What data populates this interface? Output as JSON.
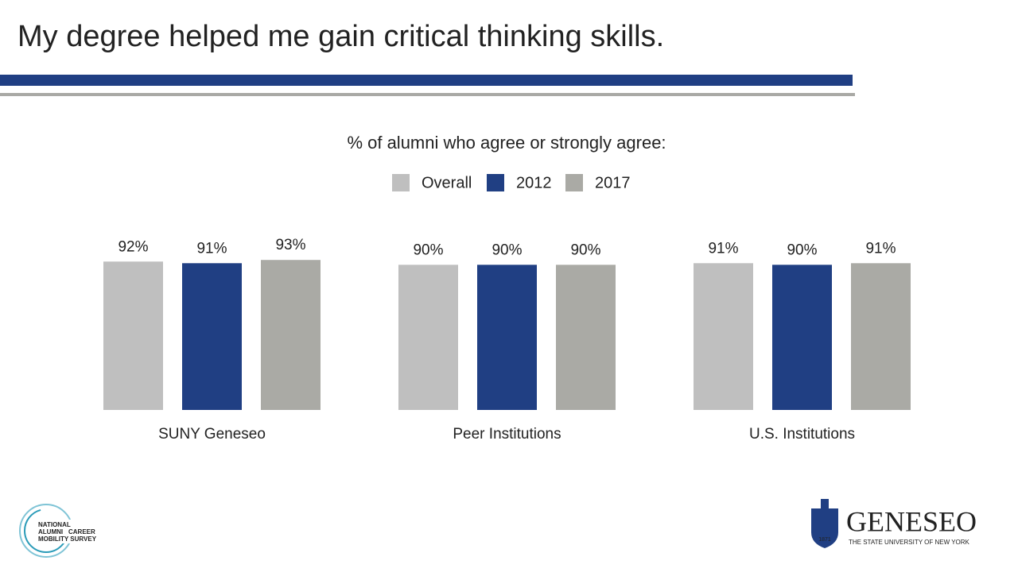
{
  "slide_title": "My degree helped me gain critical thinking skills.",
  "chart_data": {
    "type": "bar",
    "title": "% of alumni who agree or strongly agree:",
    "categories": [
      "SUNY Geneseo",
      "Peer Institutions",
      "U.S. Institutions"
    ],
    "series": [
      {
        "name": "Overall",
        "color": "#bfbfbf",
        "values": [
          92,
          90,
          91
        ],
        "value_labels": [
          "92%",
          "90%",
          "91%"
        ]
      },
      {
        "name": "2012",
        "color": "#203f83",
        "values": [
          91,
          90,
          90
        ],
        "value_labels": [
          "91%",
          "90%",
          "90%"
        ]
      },
      {
        "name": "2017",
        "color": "#aaaaa5",
        "values": [
          93,
          90,
          91
        ],
        "value_labels": [
          "93%",
          "90%",
          "91%"
        ]
      }
    ],
    "legend": "top"
  },
  "logos": {
    "left": [
      "NATIONAL",
      "ALUMNI",
      "CAREER",
      "MOBILITY SURVEY"
    ],
    "right": {
      "name": "GENESEO",
      "tagline": "THE STATE UNIVERSITY OF NEW YORK",
      "year": "1871"
    }
  }
}
